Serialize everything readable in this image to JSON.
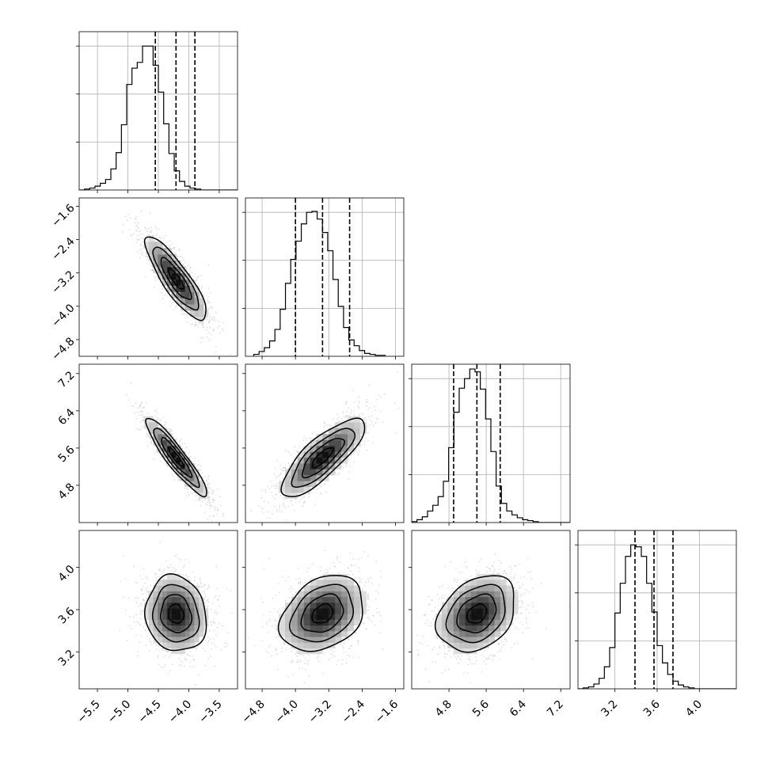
{
  "chart_data": {
    "type": "corner",
    "grid": true,
    "params": [
      {
        "name": "",
        "range": [
          -5.8,
          -3.2
        ],
        "ticks": [
          -5.5,
          -5.0,
          -4.5,
          -4.0,
          -3.5
        ],
        "tick_labels": [
          "−5.5",
          "−5.0",
          "−4.5",
          "−4.0",
          "−3.5"
        ],
        "quantiles": [
          -4.55,
          -4.21,
          -3.9
        ],
        "hist": {
          "edges_start": -5.8,
          "bin_width": 0.0867,
          "counts": [
            0,
            1,
            2,
            4,
            7,
            11,
            22,
            39,
            68,
            110,
            127,
            133,
            150,
            150,
            130,
            102,
            69,
            38,
            20,
            9,
            4,
            2,
            1,
            0,
            0,
            0,
            0,
            0,
            0,
            0
          ],
          "ymax": 165
        }
      },
      {
        "name": "",
        "range": [
          -5.2,
          -1.4
        ],
        "ticks": [
          -4.8,
          -4.0,
          -3.2,
          -2.4,
          -1.6
        ],
        "tick_labels": [
          "−4.8",
          "−4.0",
          "−3.2",
          "−2.4",
          "−1.6"
        ],
        "quantiles": [
          -4.0,
          -3.35,
          -2.7
        ],
        "hist": {
          "edges_start": -5.0,
          "bin_width": 0.1267,
          "counts": [
            2,
            5,
            9,
            16,
            28,
            49,
            76,
            101,
            120,
            138,
            150,
            151,
            143,
            129,
            110,
            80,
            52,
            30,
            17,
            11,
            6,
            3,
            2,
            1,
            1
          ],
          "ymax": 165
        }
      },
      {
        "name": "",
        "range": [
          4.0,
          7.4
        ],
        "ticks": [
          4.8,
          5.6,
          6.4,
          7.2
        ],
        "tick_labels": [
          "4.8",
          "5.6",
          "6.4",
          "7.2"
        ],
        "quantiles": [
          4.9,
          5.4,
          5.9
        ],
        "hist": {
          "edges_start": 4.0,
          "bin_width": 0.1133,
          "counts": [
            1,
            3,
            6,
            12,
            18,
            27,
            43,
            78,
            115,
            140,
            150,
            160,
            157,
            139,
            108,
            74,
            38,
            20,
            12,
            8,
            5,
            3,
            2,
            1,
            0,
            0,
            0,
            0,
            0,
            0
          ],
          "ymax": 165
        }
      },
      {
        "name": "",
        "range": [
          2.85,
          4.35
        ],
        "ticks": [
          3.2,
          3.6,
          4.0
        ],
        "tick_labels": [
          "3.2",
          "3.6",
          "4.0"
        ],
        "quantiles": [
          3.39,
          3.57,
          3.75
        ],
        "hist": {
          "edges_start": 2.85,
          "bin_width": 0.05,
          "counts": [
            0,
            1,
            2,
            5,
            11,
            23,
            43,
            79,
            110,
            138,
            150,
            148,
            138,
            110,
            80,
            45,
            27,
            15,
            8,
            4,
            2,
            1,
            0,
            0,
            0,
            0,
            0,
            0,
            0,
            0
          ],
          "ymax": 165
        }
      }
    ],
    "pairs": [
      {
        "x": 0,
        "y": 1,
        "mean": [
          -4.21,
          -3.35
        ],
        "sd": [
          0.25,
          0.5
        ],
        "rho": -0.85
      },
      {
        "x": 0,
        "y": 2,
        "mean": [
          -4.21,
          5.4
        ],
        "sd": [
          0.25,
          0.42
        ],
        "rho": -0.92
      },
      {
        "x": 1,
        "y": 2,
        "mean": [
          -3.35,
          5.4
        ],
        "sd": [
          0.5,
          0.42
        ],
        "rho": 0.8
      },
      {
        "x": 0,
        "y": 3,
        "mean": [
          -4.21,
          3.56
        ],
        "sd": [
          0.25,
          0.18
        ],
        "rho": -0.1
      },
      {
        "x": 1,
        "y": 3,
        "mean": [
          -3.35,
          3.56
        ],
        "sd": [
          0.5,
          0.18
        ],
        "rho": 0.3
      },
      {
        "x": 2,
        "y": 3,
        "mean": [
          5.4,
          3.56
        ],
        "sd": [
          0.42,
          0.18
        ],
        "rho": 0.3
      }
    ],
    "contour_levels_sigma": [
      0.5,
      1.0,
      1.5,
      2.0
    ],
    "colors": {
      "density": "#000000",
      "points": "#6e6e6e",
      "grid": "#b0b0b0",
      "axis": "#000000"
    }
  }
}
